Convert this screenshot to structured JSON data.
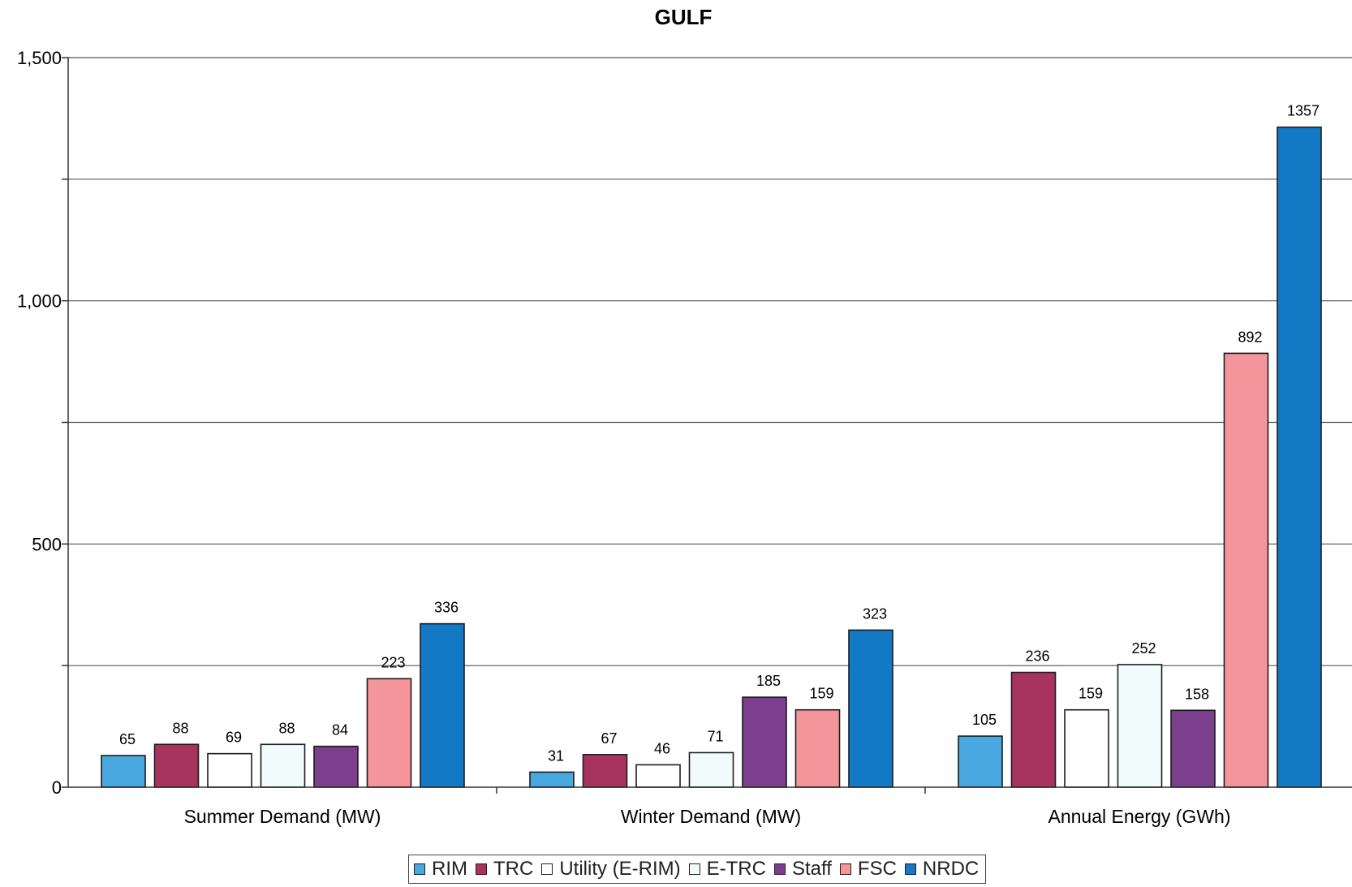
{
  "chart_data": {
    "type": "bar",
    "title": "GULF",
    "xlabel": "",
    "ylabel": "",
    "ylim": [
      0,
      1500
    ],
    "yticks": [
      0,
      250,
      500,
      750,
      1000,
      1250,
      1500
    ],
    "ytick_labels": [
      "0",
      "",
      "500",
      "",
      "1,000",
      "",
      "1,500"
    ],
    "grid": true,
    "legend_position": "bottom",
    "categories": [
      "Summer Demand (MW)",
      "Winter Demand (MW)",
      "Annual Energy (GWh)"
    ],
    "series": [
      {
        "name": "RIM",
        "color": "#4aa8e0",
        "values": [
          65,
          31,
          105
        ]
      },
      {
        "name": "TRC",
        "color": "#a8345e",
        "values": [
          88,
          67,
          236
        ]
      },
      {
        "name": "Utility (E-RIM)",
        "color": "#ffffff",
        "values": [
          69,
          46,
          159
        ]
      },
      {
        "name": "E-TRC",
        "color": "#f2fbfc",
        "values": [
          88,
          71,
          252
        ]
      },
      {
        "name": "Staff",
        "color": "#7b3f8e",
        "values": [
          84,
          185,
          158
        ]
      },
      {
        "name": "FSC",
        "color": "#f4959b",
        "values": [
          223,
          159,
          892
        ]
      },
      {
        "name": "NRDC",
        "color": "#1479c4",
        "values": [
          336,
          323,
          1357
        ]
      }
    ]
  }
}
